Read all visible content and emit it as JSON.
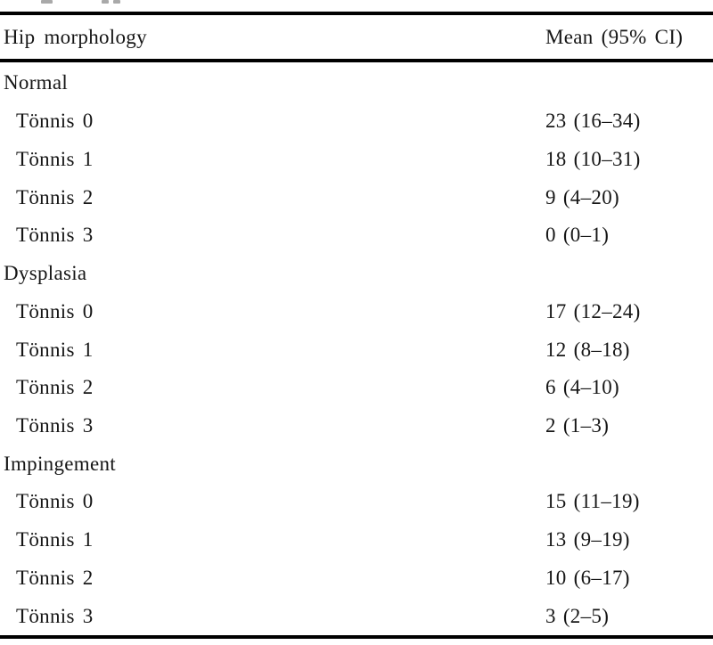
{
  "table": {
    "columns": [
      "Hip morphology",
      "Mean (95% CI)"
    ],
    "rows": [
      {
        "label": "Normal",
        "value": "",
        "indent": false
      },
      {
        "label": "Tönnis 0",
        "value": "23 (16–34)",
        "indent": true
      },
      {
        "label": "Tönnis 1",
        "value": "18 (10–31)",
        "indent": true
      },
      {
        "label": "Tönnis 2",
        "value": "9 (4–20)",
        "indent": true
      },
      {
        "label": "Tönnis 3",
        "value": "0 (0–1)",
        "indent": true
      },
      {
        "label": "Dysplasia",
        "value": "",
        "indent": false
      },
      {
        "label": "Tönnis 0",
        "value": "17 (12–24)",
        "indent": true
      },
      {
        "label": "Tönnis 1",
        "value": "12 (8–18)",
        "indent": true
      },
      {
        "label": "Tönnis 2",
        "value": "6 (4–10)",
        "indent": true
      },
      {
        "label": "Tönnis 3",
        "value": "2 (1–3)",
        "indent": true
      },
      {
        "label": "Impingement",
        "value": "",
        "indent": false
      },
      {
        "label": "Tönnis 0",
        "value": "15 (11–19)",
        "indent": true
      },
      {
        "label": "Tönnis 1",
        "value": "13 (9–19)",
        "indent": true
      },
      {
        "label": "Tönnis 2",
        "value": "10 (6–17)",
        "indent": true
      },
      {
        "label": "Tönnis 3",
        "value": "3 (2–5)",
        "indent": true
      }
    ],
    "colors": {
      "background": "#ffffff",
      "text": "#161616",
      "rule": "#000000"
    }
  }
}
